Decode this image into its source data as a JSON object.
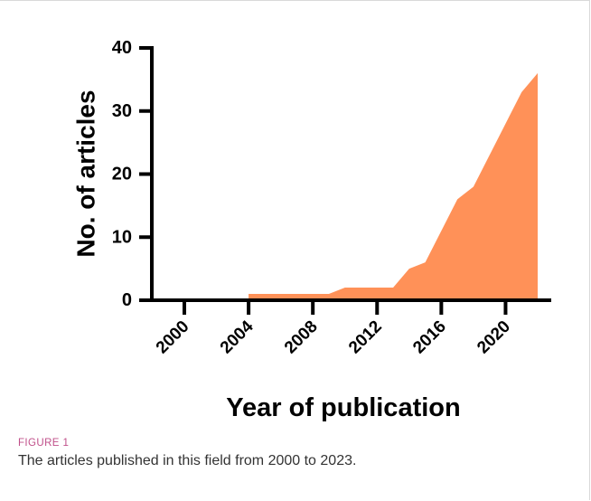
{
  "caption": {
    "label": "FIGURE 1",
    "text": "The articles published in this field from 2000 to 2023."
  },
  "chart_data": {
    "type": "area",
    "xlabel": "Year of publication",
    "ylabel": "No. of articles",
    "x": [
      2004,
      2005,
      2006,
      2007,
      2008,
      2009,
      2010,
      2011,
      2012,
      2013,
      2014,
      2015,
      2016,
      2017,
      2018,
      2019,
      2020,
      2021,
      2022
    ],
    "values": [
      1,
      1,
      1,
      1,
      1,
      1,
      2,
      2,
      2,
      2,
      5,
      6,
      11,
      16,
      18,
      23,
      28,
      33,
      36
    ],
    "xlim": [
      2000,
      2022
    ],
    "ylim": [
      0,
      40
    ],
    "xticks": [
      "2000",
      "2004",
      "2008",
      "2012",
      "2016",
      "2020"
    ],
    "yticks": [
      "0",
      "10",
      "20",
      "30",
      "40"
    ],
    "fill_color": "#ff9158",
    "grid": false,
    "legend": "none"
  }
}
